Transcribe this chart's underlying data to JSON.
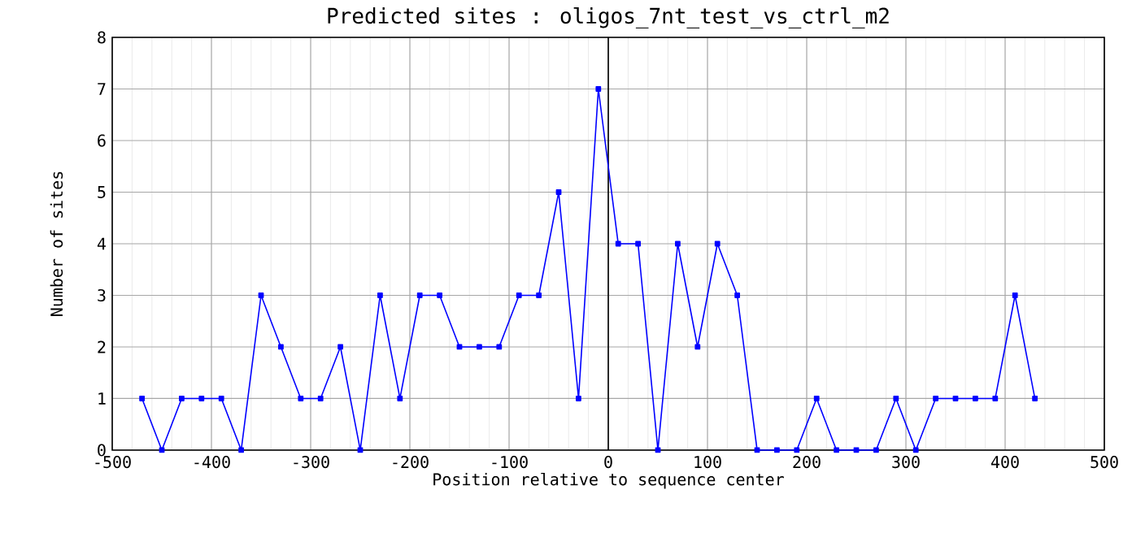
{
  "chart_data": {
    "type": "line",
    "title": "Predicted sites : oligos_7nt_test_vs_ctrl_m2",
    "xlabel": "Position relative to sequence center",
    "ylabel": "Number of sites",
    "x": [
      -470,
      -450,
      -430,
      -410,
      -390,
      -370,
      -350,
      -330,
      -310,
      -290,
      -270,
      -250,
      -230,
      -210,
      -190,
      -170,
      -150,
      -130,
      -110,
      -90,
      -70,
      -50,
      -30,
      -10,
      10,
      30,
      50,
      70,
      90,
      110,
      130,
      150,
      170,
      190,
      210,
      230,
      250,
      270,
      290,
      310,
      330,
      350,
      370,
      390,
      410,
      430
    ],
    "series": [
      {
        "color": "#0000ff",
        "values": [
          1,
          0,
          1,
          1,
          1,
          0,
          3,
          2,
          1,
          1,
          2,
          0,
          3,
          1,
          3,
          3,
          2,
          2,
          2,
          3,
          3,
          5,
          1,
          7,
          4,
          4,
          0,
          4,
          2,
          4,
          3,
          0,
          0,
          0,
          1,
          0,
          0,
          0,
          1,
          0,
          1,
          1,
          1,
          1,
          3,
          1
        ]
      }
    ],
    "xlim": [
      -500,
      500
    ],
    "xticks": [
      -500,
      -400,
      -300,
      -200,
      -100,
      0,
      100,
      200,
      300,
      400,
      500
    ],
    "ylim": [
      0,
      8
    ],
    "yticks": [
      0,
      1,
      2,
      3,
      4,
      5,
      6,
      7,
      8
    ],
    "ref_lines": [
      {
        "axis": "x",
        "value": 0,
        "color": "#000000"
      }
    ],
    "grid": true,
    "marker": "square",
    "line_style": "solid"
  }
}
